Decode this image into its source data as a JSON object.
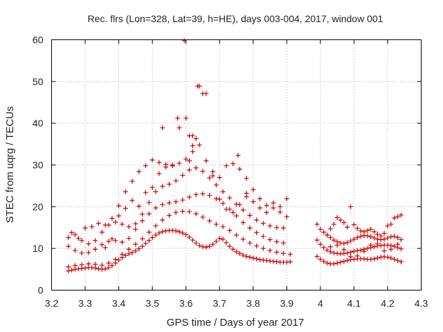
{
  "chart_data": {
    "type": "scatter",
    "title": "Rec. flrs (Lon=328, Lat=39, h=HE), days 003-004, 2017, window 001",
    "xlabel": "GPS time / Days of year 2017",
    "ylabel": "STEC from uqrg / TECUs",
    "xlim": [
      3.2,
      4.3
    ],
    "ylim": [
      0,
      60
    ],
    "xticks": [
      "3.2",
      "3.3",
      "3.4",
      "3.5",
      "3.6",
      "3.7",
      "3.8",
      "3.9",
      "4",
      "4.1",
      "4.2",
      "4.3"
    ],
    "yticks": [
      "0",
      "10",
      "20",
      "30",
      "40",
      "50",
      "60"
    ],
    "grid": true,
    "marker": "plus",
    "color": "#cc0000",
    "series": [
      {
        "x": [
          3.25,
          3.26,
          3.27,
          3.28,
          3.29,
          3.3,
          3.31,
          3.32,
          3.33,
          3.34,
          3.35,
          3.36,
          3.37,
          3.38,
          3.39,
          3.4,
          3.41,
          3.42,
          3.43,
          3.44,
          3.45,
          3.46,
          3.47,
          3.48,
          3.49,
          3.5,
          3.51,
          3.52,
          3.53,
          3.54,
          3.55,
          3.56,
          3.57,
          3.58,
          3.59,
          3.6,
          3.61,
          3.62,
          3.63,
          3.64,
          3.65,
          3.66,
          3.67,
          3.68,
          3.69,
          3.7,
          3.71,
          3.72,
          3.73,
          3.74,
          3.75,
          3.76,
          3.77,
          3.78,
          3.79,
          3.8,
          3.81,
          3.82,
          3.83,
          3.84,
          3.85,
          3.86,
          3.87,
          3.88,
          3.89,
          3.9,
          3.91
        ],
        "y": [
          4.6,
          4.8,
          5.0,
          5.1,
          5.2,
          5.3,
          5.4,
          5.4,
          5.3,
          5.1,
          5.0,
          5.1,
          5.4,
          5.9,
          6.5,
          7.2,
          7.8,
          8.3,
          8.7,
          9.0,
          9.4,
          9.9,
          10.5,
          11.2,
          11.9,
          12.6,
          13.2,
          13.7,
          14.0,
          14.2,
          14.3,
          14.3,
          14.2,
          14.0,
          13.7,
          13.3,
          12.7,
          12.0,
          11.3,
          10.7,
          10.4,
          10.3,
          10.5,
          11.0,
          11.7,
          12.4,
          12.2,
          11.4,
          10.5,
          9.8,
          9.2,
          8.8,
          8.4,
          8.1,
          7.9,
          7.7,
          7.5,
          7.3,
          7.2,
          7.1,
          7.0,
          6.9,
          6.8,
          6.7,
          6.7,
          6.7,
          6.8
        ]
      },
      {
        "x": [
          3.25,
          3.27,
          3.29,
          3.31,
          3.33,
          3.35,
          3.37,
          3.39,
          3.41,
          3.43,
          3.45,
          3.47,
          3.49,
          3.51,
          3.53,
          3.55,
          3.57,
          3.59,
          3.61,
          3.63,
          3.65,
          3.67,
          3.69,
          3.71,
          3.73,
          3.75,
          3.77,
          3.79,
          3.81,
          3.83,
          3.85,
          3.87,
          3.89,
          3.91
        ],
        "y": [
          5.6,
          5.9,
          6.1,
          6.3,
          6.2,
          6.0,
          6.5,
          7.4,
          8.6,
          9.8,
          11.0,
          12.3,
          13.9,
          15.4,
          16.8,
          17.9,
          18.6,
          18.9,
          18.8,
          18.3,
          17.5,
          16.6,
          15.8,
          15.2,
          14.3,
          13.2,
          12.2,
          11.3,
          10.6,
          10.0,
          9.5,
          9.1,
          8.8,
          8.6
        ]
      },
      {
        "x": [
          3.25,
          3.27,
          3.29,
          3.31,
          3.33,
          3.35,
          3.37,
          3.39,
          3.41,
          3.43,
          3.45,
          3.47,
          3.49,
          3.51,
          3.53,
          3.55,
          3.57,
          3.59,
          3.61,
          3.63,
          3.65,
          3.67,
          3.69,
          3.71,
          3.73,
          3.75,
          3.77,
          3.79,
          3.81,
          3.83,
          3.85,
          3.87,
          3.89
        ],
        "y": [
          10.5,
          9.5,
          8.9,
          9.0,
          9.8,
          10.9,
          11.7,
          11.9,
          11.5,
          12.4,
          14.6,
          16.6,
          18.3,
          19.7,
          20.5,
          20.9,
          21.2,
          21.6,
          22.3,
          22.9,
          23.1,
          22.7,
          21.9,
          20.8,
          19.4,
          17.8,
          16.2,
          14.9,
          13.8,
          12.9,
          12.1,
          11.6,
          11.3
        ]
      },
      {
        "x": [
          3.25,
          3.27,
          3.29,
          3.31,
          3.33,
          3.35,
          3.37,
          3.39,
          3.41,
          3.43,
          3.45,
          3.47,
          3.49,
          3.51,
          3.53,
          3.55,
          3.57,
          3.59,
          3.61,
          3.63,
          3.65,
          3.67,
          3.69,
          3.71,
          3.73,
          3.75,
          3.77,
          3.79,
          3.81,
          3.83,
          3.85,
          3.87,
          3.89
        ],
        "y": [
          12.6,
          13.3,
          11.9,
          11.1,
          11.9,
          13.9,
          15.6,
          16.3,
          15.8,
          15.2,
          15.9,
          18.2,
          21.0,
          23.6,
          24.9,
          25.4,
          26.2,
          27.5,
          28.8,
          29.3,
          28.5,
          26.9,
          25.2,
          23.6,
          22.1,
          20.6,
          19.2,
          17.9,
          16.8,
          16.0,
          15.4,
          15.0,
          14.9
        ]
      },
      {
        "x": [
          3.26,
          3.28,
          3.3,
          3.32,
          3.34,
          3.36,
          3.38,
          3.4,
          3.42,
          3.44,
          3.46,
          3.48,
          3.5,
          3.52,
          3.54,
          3.56,
          3.58,
          3.6,
          3.62,
          3.64,
          3.66,
          3.68,
          3.7,
          3.72,
          3.74,
          3.76,
          3.78,
          3.8,
          3.82,
          3.84,
          3.86,
          3.88,
          3.9
        ],
        "y": [
          13.8,
          12.4,
          14.9,
          15.2,
          16.0,
          15.6,
          17.2,
          20.2,
          23.6,
          26.1,
          28.4,
          29.8,
          31.2,
          30.6,
          30.1,
          29.8,
          30.4,
          31.4,
          33.2,
          34.8,
          31.0,
          28.4,
          27.0,
          29.8,
          30.3,
          29.0,
          26.8,
          24.1,
          21.9,
          20.3,
          19.7,
          18.7,
          17.6
        ]
      },
      {
        "x": [
          3.36,
          3.38,
          3.4,
          3.42,
          3.44,
          3.46,
          3.48,
          3.5,
          3.52,
          3.54,
          3.56,
          3.58,
          3.6,
          3.61,
          3.62,
          3.63,
          3.64,
          3.66,
          3.68,
          3.7,
          3.72,
          3.74,
          3.76,
          3.78,
          3.8,
          3.82,
          3.84,
          3.86,
          3.88,
          3.9
        ],
        "y": [
          10.2,
          12.3,
          17.8,
          19.6,
          21.5,
          20.1,
          23.4,
          24.6,
          27.9,
          29.5,
          30.0,
          38.9,
          41.2,
          31.0,
          37.0,
          36.3,
          48.9,
          47.1,
          27.4,
          21.8,
          19.4,
          18.6,
          20.5,
          22.4,
          21.2,
          19.7,
          18.6,
          20.9,
          20.0,
          21.9
        ]
      },
      {
        "x": [
          3.53,
          3.575,
          3.595,
          3.61,
          3.62,
          3.635,
          3.65,
          3.755,
          3.78
        ],
        "y": [
          38.9,
          41.2,
          59.8,
          37.0,
          34.6,
          48.9,
          47.1,
          32.3,
          23.2
        ]
      },
      {
        "x": [
          3.99,
          4.0,
          4.01,
          4.02,
          4.03,
          4.04,
          4.05,
          4.06,
          4.07,
          4.08,
          4.09,
          4.1,
          4.11,
          4.12,
          4.13,
          4.14,
          4.15,
          4.16,
          4.17,
          4.18,
          4.19,
          4.2,
          4.21,
          4.22,
          4.23,
          4.24
        ],
        "y": [
          8.1,
          7.4,
          6.9,
          6.5,
          6.3,
          6.3,
          6.5,
          6.7,
          6.9,
          7.1,
          7.3,
          7.4,
          7.5,
          7.5,
          7.5,
          7.4,
          7.4,
          7.5,
          7.7,
          7.9,
          8.0,
          7.9,
          7.7,
          7.4,
          7.1,
          6.8
        ]
      },
      {
        "x": [
          3.99,
          4.0,
          4.01,
          4.02,
          4.03,
          4.04,
          4.05,
          4.06,
          4.07,
          4.08,
          4.09,
          4.1,
          4.11,
          4.12,
          4.13,
          4.14,
          4.15,
          4.16,
          4.17,
          4.18,
          4.19,
          4.2,
          4.21,
          4.22,
          4.23,
          4.24
        ],
        "y": [
          12.0,
          11.0,
          10.2,
          9.6,
          9.2,
          8.9,
          8.8,
          8.7,
          8.8,
          8.9,
          9.1,
          9.3,
          9.5,
          9.6,
          9.8,
          10.0,
          10.2,
          10.4,
          10.6,
          10.7,
          10.8,
          10.8,
          10.7,
          10.5,
          10.2,
          9.9
        ]
      },
      {
        "x": [
          3.99,
          4.0,
          4.01,
          4.02,
          4.03,
          4.04,
          4.05,
          4.06,
          4.07,
          4.08,
          4.09,
          4.1,
          4.11,
          4.12,
          4.13,
          4.14,
          4.15,
          4.16,
          4.17,
          4.18,
          4.19,
          4.2,
          4.21,
          4.22,
          4.23,
          4.24
        ],
        "y": [
          15.8,
          14.6,
          13.9,
          13.2,
          12.6,
          12.0,
          11.6,
          11.3,
          11.2,
          11.4,
          11.8,
          12.2,
          12.6,
          12.9,
          13.1,
          13.0,
          12.8,
          12.5,
          12.2,
          12.1,
          12.2,
          12.5,
          12.8,
          12.9,
          12.6,
          12.1
        ]
      },
      {
        "x": [
          4.02,
          4.03,
          4.04,
          4.05,
          4.06,
          4.07,
          4.08,
          4.09,
          4.1,
          4.11,
          4.12,
          4.13,
          4.14,
          4.15,
          4.16,
          4.17,
          4.18,
          4.19,
          4.2,
          4.21,
          4.22,
          4.23,
          4.24
        ],
        "y": [
          13.2,
          14.7,
          15.8,
          17.4,
          16.8,
          16.2,
          15.1,
          20.0,
          15.7,
          14.8,
          14.2,
          14.0,
          14.3,
          14.6,
          14.0,
          13.4,
          13.0,
          13.6,
          15.4,
          15.8,
          17.3,
          17.6,
          18.0
        ]
      },
      {
        "x": [
          4.03,
          4.05,
          4.07,
          4.09,
          4.11,
          4.13,
          4.15,
          4.17,
          4.19,
          4.21,
          4.23
        ],
        "y": [
          10.4,
          10.8,
          9.7,
          8.0,
          8.2,
          9.3,
          10.8,
          11.1,
          9.4,
          9.8,
          11.0
        ]
      }
    ]
  }
}
